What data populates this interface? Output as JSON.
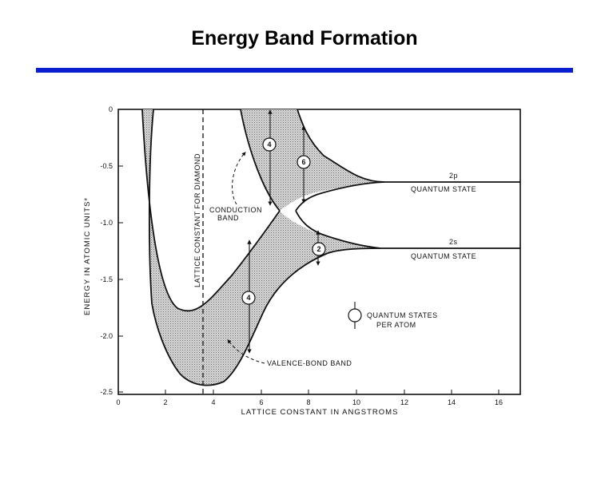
{
  "slide": {
    "title": "Energy Band Formation",
    "rule_color": "#0a1fd0"
  },
  "diagram": {
    "shade_color": "#d2d2d2",
    "ink_color": "#111111",
    "axes": {
      "x_label": "LATTICE CONSTANT IN ANGSTROMS",
      "y_label": "ENERGY IN ATOMIC UNITS*",
      "x_ticks": [
        "0",
        "2",
        "4",
        "6",
        "8",
        "10",
        "12",
        "14",
        "16"
      ],
      "y_ticks": [
        "0",
        "-0.5",
        "-1.0",
        "-1.5",
        "-2.0",
        "-2.5"
      ]
    },
    "labels": {
      "lattice_diamond": "LATTICE CONSTANT FOR DIAMOND",
      "conduction_band_1": "CONDUCTION",
      "conduction_band_2": "BAND",
      "valence_band": "VALENCE-BOND BAND",
      "state_2p": "2p",
      "state_2s": "2s",
      "quantum_state": "QUANTUM STATE",
      "legend_1": "QUANTUM STATES",
      "legend_2": "PER ATOM"
    },
    "state_counts": {
      "conduction_upper_left": "4",
      "conduction_upper_right": "6",
      "lower_right": "2",
      "valence": "4"
    }
  }
}
